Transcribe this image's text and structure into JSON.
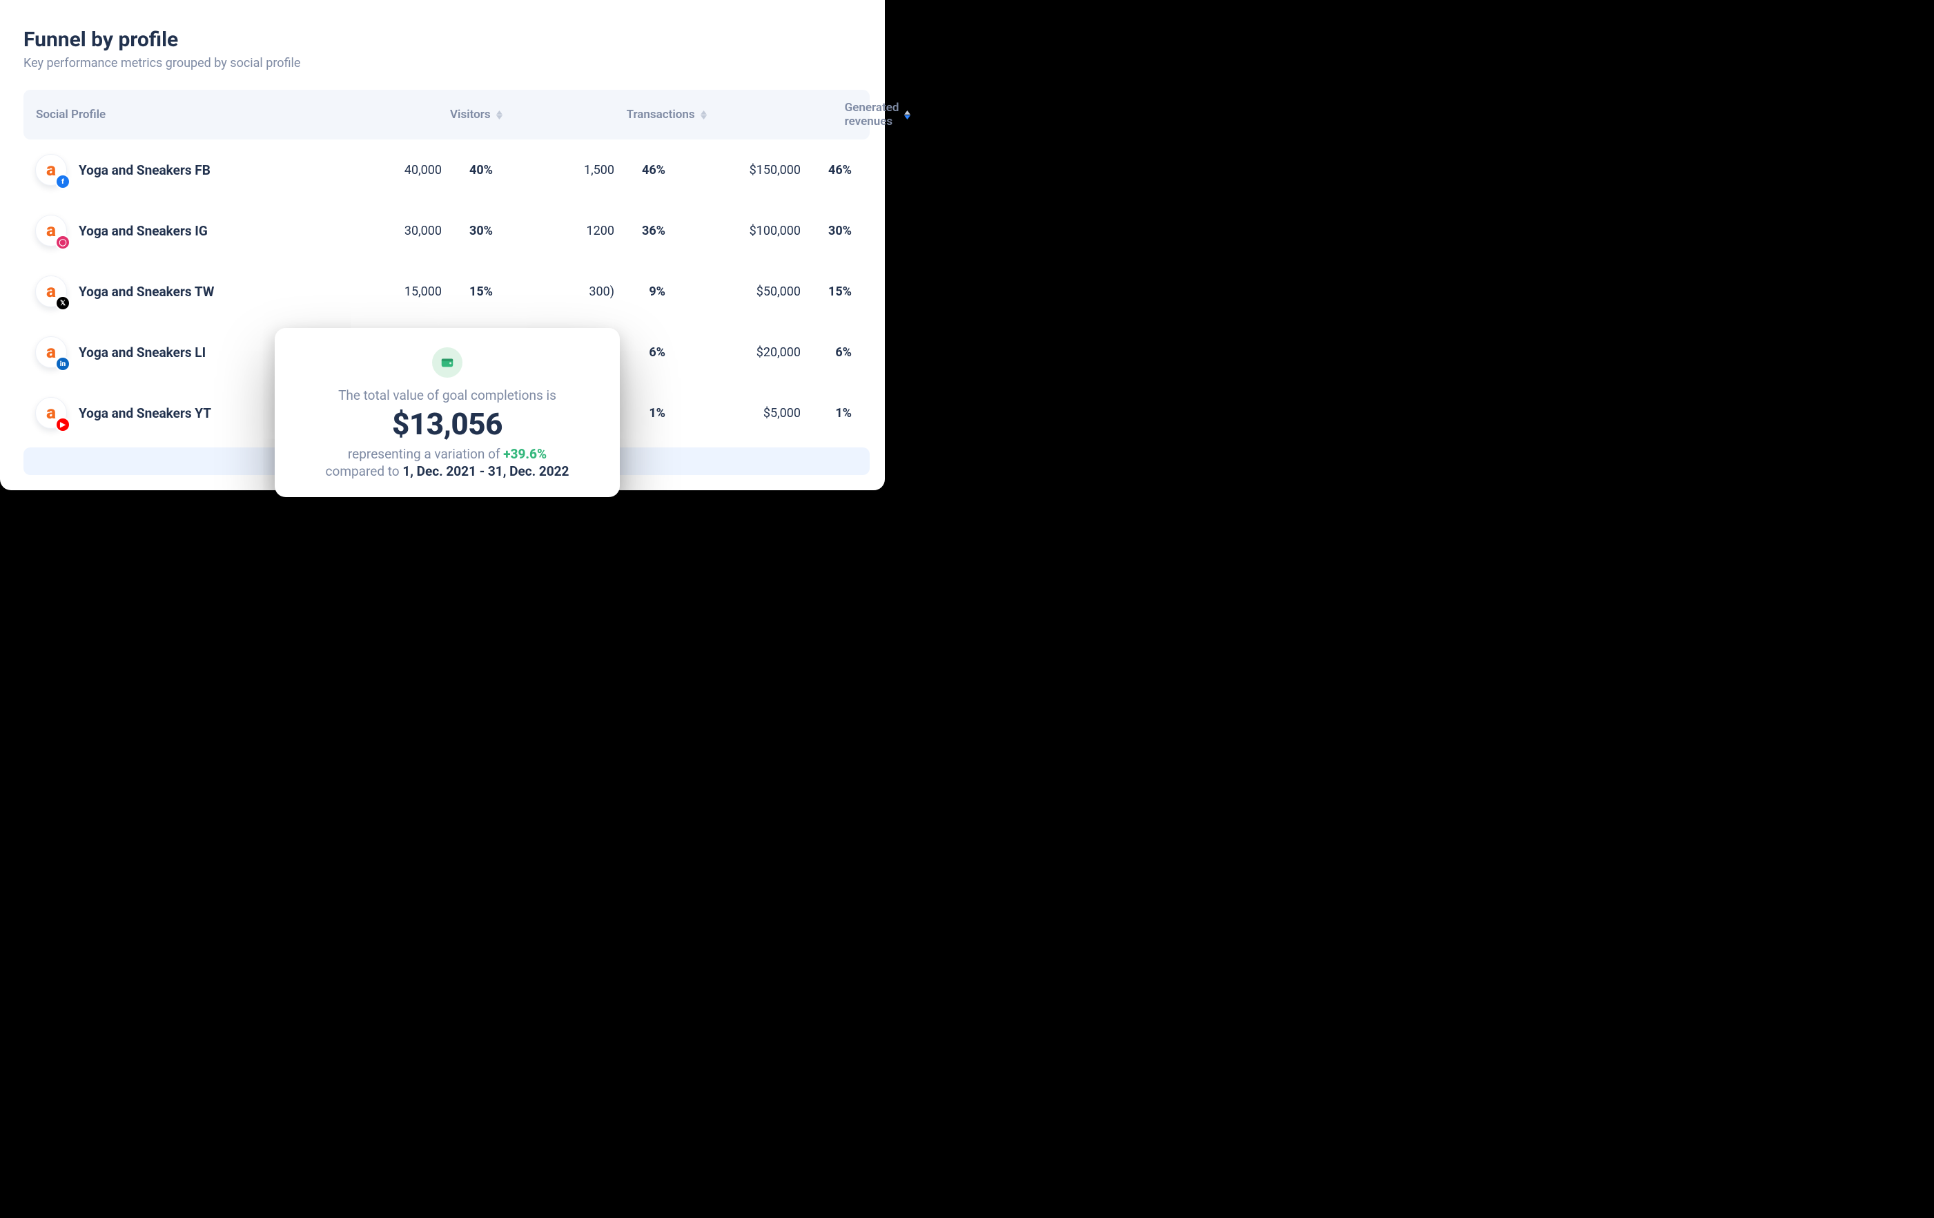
{
  "colors": {
    "ink": "#22324e",
    "muted": "#7e8aa3",
    "brand": "#f46a1f",
    "green": "#34b77c",
    "sortActive": "#2e84ff",
    "sortInactive": "#c2cad8",
    "headBg": "#f3f6fb",
    "stripe": "#edf4ff"
  },
  "header": {
    "title": "Funnel by profile",
    "subtitle": "Key performance metrics grouped by social profile"
  },
  "table": {
    "columns": {
      "profile": "Social Profile",
      "visitors": "Visitors",
      "transactions": "Transactions",
      "revenues": "Generated revenues"
    },
    "sort": {
      "visitors": "none",
      "transactions": "none",
      "revenues": "desc"
    },
    "rows": [
      {
        "network": "fb",
        "name": "Yoga and Sneakers FB",
        "visitors": "40,000",
        "visitors_pct": "40%",
        "tx": "1,500",
        "tx_pct": "46%",
        "rev": "$150,000",
        "rev_pct": "46%",
        "badgeColor": "#1877f2",
        "badgeGlyph": "f"
      },
      {
        "network": "ig",
        "name": "Yoga and Sneakers IG",
        "visitors": "30,000",
        "visitors_pct": "30%",
        "tx": "1200",
        "tx_pct": "36%",
        "rev": "$100,000",
        "rev_pct": "30%",
        "badgeColor": "#e1306c",
        "badgeGlyph": "◯"
      },
      {
        "network": "tw",
        "name": "Yoga and Sneakers TW",
        "visitors": "15,000",
        "visitors_pct": "15%",
        "tx": "300)",
        "tx_pct": "9%",
        "rev": "$50,000",
        "rev_pct": "15%",
        "badgeColor": "#000000",
        "badgeGlyph": "𝕏"
      },
      {
        "network": "li",
        "name": "Yoga and Sneakers LI",
        "visitors": "",
        "visitors_pct": "",
        "tx": "",
        "tx_pct": "6%",
        "rev": "$20,000",
        "rev_pct": "6%",
        "badgeColor": "#0a66c2",
        "badgeGlyph": "in"
      },
      {
        "network": "yt",
        "name": "Yoga and Sneakers YT",
        "visitors": "",
        "visitors_pct": "",
        "tx": "",
        "tx_pct": "1%",
        "rev": "$5,000",
        "rev_pct": "1%",
        "badgeColor": "#ff0000",
        "badgeGlyph": "▶"
      }
    ]
  },
  "popup": {
    "lead": "The total value of goal completions is",
    "value": "$13,056",
    "variation_prefix": "representing a variation of ",
    "variation": "+39.6%",
    "compare_prefix": "compared to ",
    "compare_range": "1, Dec. 2021 - 31, Dec. 2022"
  }
}
